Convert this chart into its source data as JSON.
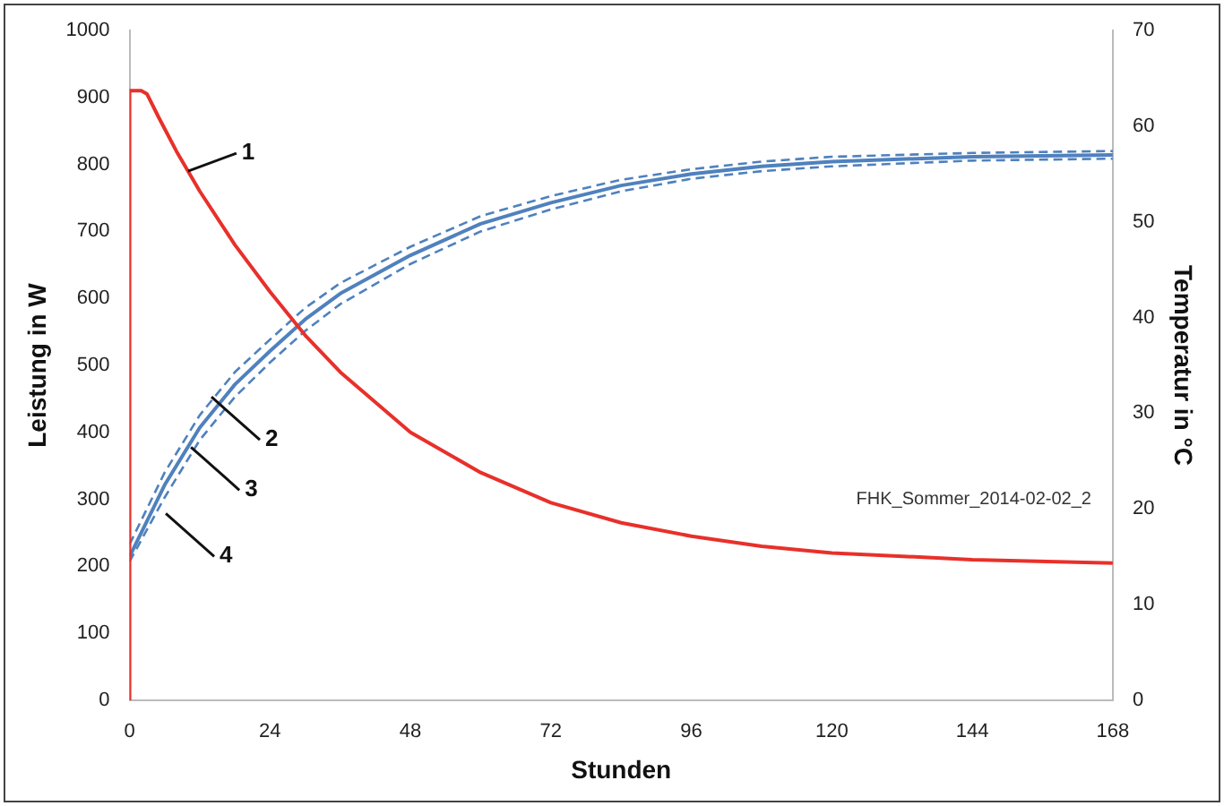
{
  "chart_data": {
    "type": "line",
    "xlabel": "Stunden",
    "ylabel": "Leistung in W",
    "y2label": "Temperatur in °C",
    "xlim": [
      0,
      168
    ],
    "xticks": [
      0,
      24,
      48,
      72,
      96,
      120,
      144,
      168
    ],
    "ylim": [
      0,
      1000
    ],
    "yticks": [
      0,
      100,
      200,
      300,
      400,
      500,
      600,
      700,
      800,
      900,
      1000
    ],
    "y2lim": [
      0,
      70
    ],
    "y2ticks": [
      0,
      10,
      20,
      30,
      40,
      50,
      60,
      70
    ],
    "grid": false,
    "legend": false,
    "marker": "none",
    "series": [
      {
        "color": "#e8302a",
        "x": [
          0,
          0,
          2,
          3,
          5,
          8,
          12,
          18,
          24,
          30,
          36,
          48,
          60,
          72,
          84,
          96,
          108,
          120,
          144,
          168
        ],
        "values": [
          0,
          910,
          910,
          905,
          870,
          820,
          760,
          680,
          610,
          545,
          490,
          400,
          340,
          295,
          265,
          245,
          230,
          220,
          210,
          205
        ]
      },
      {
        "color": "#4f81bd",
        "axis": "y2",
        "x": [
          0,
          6,
          12,
          18,
          24,
          30,
          36,
          48,
          60,
          72,
          84,
          96,
          108,
          120,
          144,
          168
        ],
        "values": [
          15,
          22.5,
          28.5,
          33,
          36.5,
          39.8,
          42.5,
          46.5,
          49.8,
          52,
          53.8,
          55,
          55.8,
          56.3,
          56.8,
          57
        ]
      },
      {
        "color": "#4f81bd",
        "axis": "y2",
        "line_style": "dashed",
        "x": [
          0,
          6,
          12,
          18,
          24,
          30,
          36,
          48,
          60,
          72,
          84,
          96,
          108,
          120,
          144,
          168
        ],
        "values": [
          16.3,
          23.8,
          29.8,
          34.3,
          37.7,
          41,
          43.6,
          47.4,
          50.6,
          52.7,
          54.4,
          55.5,
          56.3,
          56.8,
          57.2,
          57.4
        ]
      },
      {
        "color": "#4f81bd",
        "axis": "y2",
        "line_style": "dashed",
        "x": [
          0,
          6,
          12,
          18,
          24,
          30,
          36,
          48,
          60,
          72,
          84,
          96,
          108,
          120,
          144,
          168
        ],
        "values": [
          14.5,
          21.2,
          27.2,
          31.7,
          35.3,
          38.6,
          41.4,
          45.6,
          49,
          51.3,
          53.2,
          54.5,
          55.3,
          55.8,
          56.4,
          56.6
        ]
      }
    ],
    "annotations": [
      {
        "text": "1",
        "x": 10,
        "y": 790
      },
      {
        "text": "2",
        "x": 14,
        "y": 453
      },
      {
        "text": "3",
        "x": 10.5,
        "y": 378
      },
      {
        "text": "4",
        "x": 6.2,
        "y": 279
      },
      "FHK_Sommer_2014-02-02_2"
    ]
  }
}
